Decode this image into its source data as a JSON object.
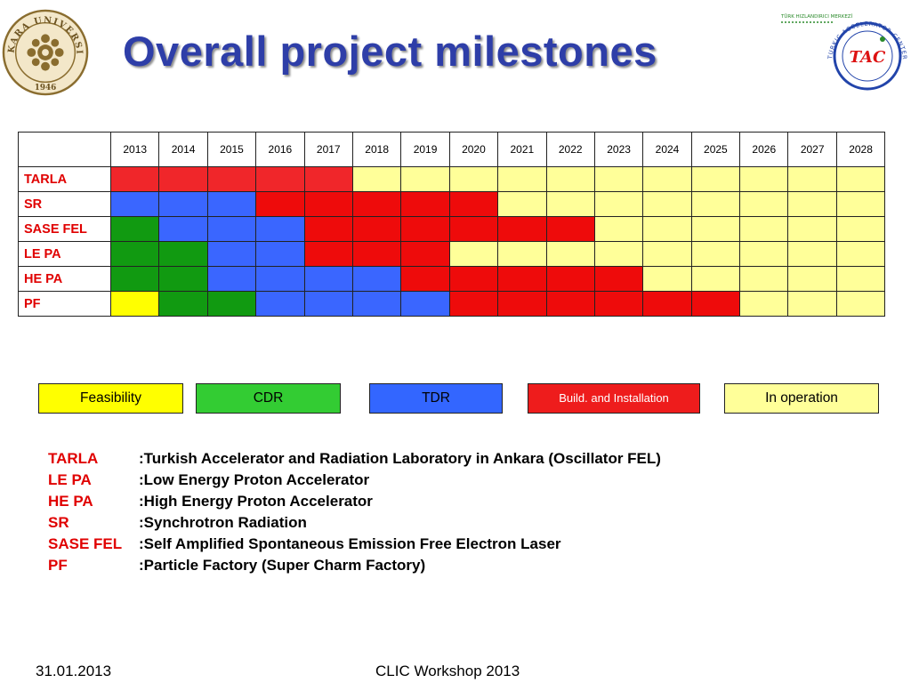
{
  "title": "Overall project milestones",
  "logo_left": {
    "text": "ANKARA UNIVERSITY",
    "year": "1946"
  },
  "logo_right": {
    "text": "TÜRK HIZLANDIRICI MERKEZİ",
    "ring": "TURKIC ACCELERATOR CENTER",
    "mark": "TAC"
  },
  "table": {
    "years": [
      "2013",
      "2014",
      "2015",
      "2016",
      "2017",
      "2018",
      "2019",
      "2020",
      "2021",
      "2022",
      "2023",
      "2024",
      "2025",
      "2026",
      "2027",
      "2028"
    ],
    "rows": [
      {
        "label": "TARLA",
        "phases": [
          "B",
          "B",
          "B",
          "B",
          "B",
          "O",
          "O",
          "O",
          "O",
          "O",
          "O",
          "O",
          "O",
          "O",
          "O",
          "O"
        ]
      },
      {
        "label": "SR",
        "phases": [
          "T",
          "T",
          "T",
          "B",
          "B",
          "B",
          "B",
          "B",
          "O",
          "O",
          "O",
          "O",
          "O",
          "O",
          "O",
          "O"
        ]
      },
      {
        "label": "SASE FEL",
        "phases": [
          "C",
          "T",
          "T",
          "T",
          "B",
          "B",
          "B",
          "B",
          "B",
          "B",
          "O",
          "O",
          "O",
          "O",
          "O",
          "O"
        ]
      },
      {
        "label": "LE PA",
        "phases": [
          "C",
          "C",
          "T",
          "T",
          "B",
          "B",
          "B",
          "O",
          "O",
          "O",
          "O",
          "O",
          "O",
          "O",
          "O",
          "O"
        ]
      },
      {
        "label": "HE PA",
        "phases": [
          "C",
          "C",
          "T",
          "T",
          "T",
          "T",
          "B",
          "B",
          "B",
          "B",
          "B",
          "O",
          "O",
          "O",
          "O",
          "O"
        ]
      },
      {
        "label": "PF",
        "phases": [
          "F",
          "C",
          "C",
          "T",
          "T",
          "T",
          "T",
          "B",
          "B",
          "B",
          "B",
          "B",
          "B",
          "O",
          "O",
          "O"
        ]
      }
    ]
  },
  "legend": [
    {
      "key": "F",
      "label": "Feasibility",
      "color": "#ffff00"
    },
    {
      "key": "C",
      "label": "CDR",
      "color": "#33cc33"
    },
    {
      "key": "T",
      "label": "TDR",
      "color": "#3366ff"
    },
    {
      "key": "B",
      "label": "Build. and Installation",
      "color": "#ee1c1c"
    },
    {
      "key": "O",
      "label": "In operation",
      "color": "#ffff99"
    }
  ],
  "definitions": [
    {
      "abbr": "TARLA",
      "text": ":Turkish Accelerator and Radiation Laboratory in Ankara (Oscillator FEL)"
    },
    {
      "abbr": "LE PA",
      "text": ":Low Energy Proton Accelerator"
    },
    {
      "abbr": "HE PA",
      "text": ":High Energy Proton  Accelerator"
    },
    {
      "abbr": "SR",
      "text": ":Synchrotron Radiation"
    },
    {
      "abbr": "SASE FEL",
      "text": ":Self  Amplified Spontaneous Emission Free Electron Laser"
    },
    {
      "abbr": "PF",
      "text": ":Particle Factory  (Super Charm Factory)"
    }
  ],
  "footer": {
    "date": "31.01.2013",
    "event": "CLIC Workshop 2013"
  }
}
